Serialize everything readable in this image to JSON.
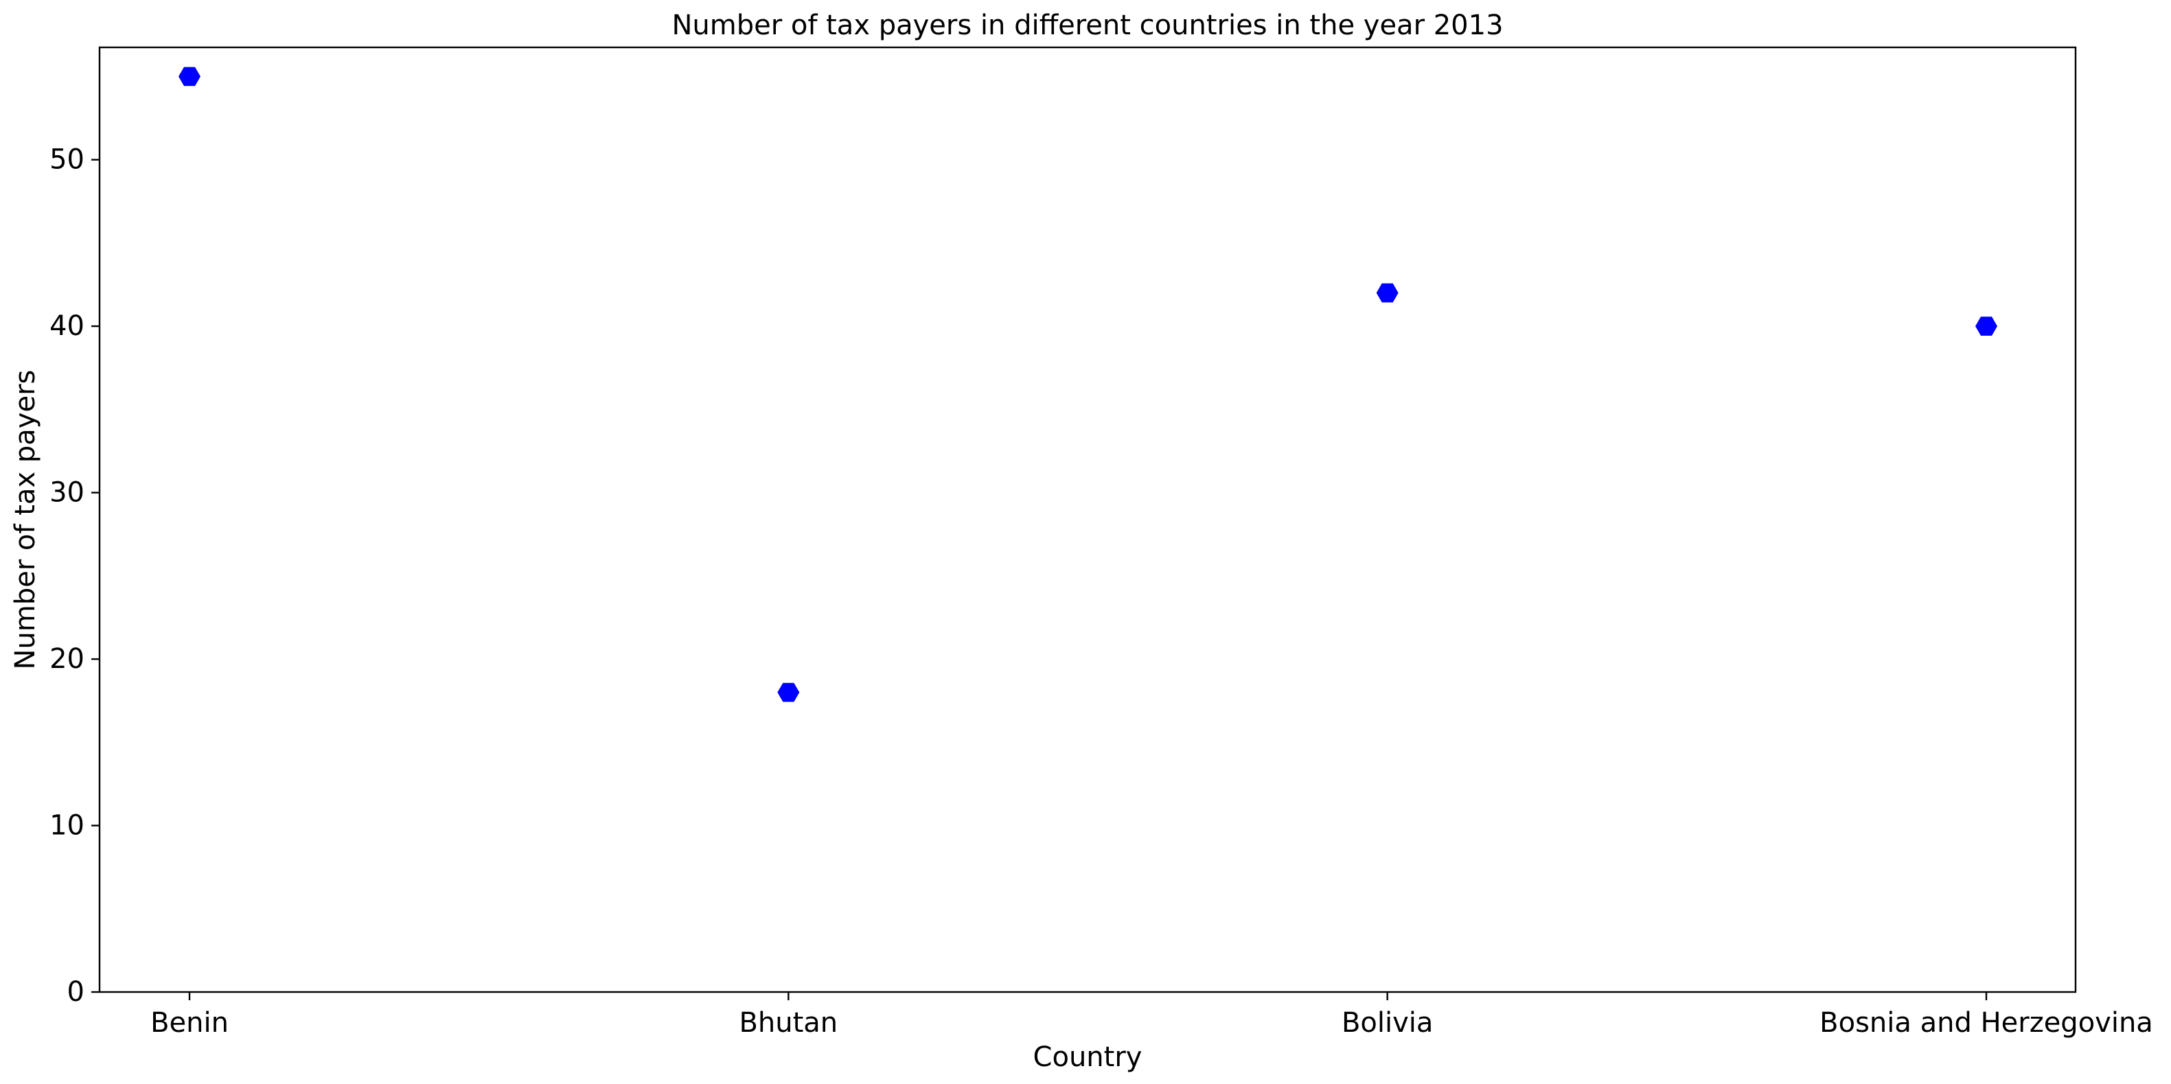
{
  "chart_data": {
    "type": "scatter",
    "title": "Number of tax payers in different countries in the year 2013",
    "xlabel": "Country",
    "ylabel": "Number of tax payers",
    "categories": [
      "Benin",
      "Bhutan",
      "Bolivia",
      "Bosnia and Herzegovina"
    ],
    "values": [
      55,
      18,
      42,
      40
    ],
    "ylim": [
      0,
      56.75
    ],
    "yticks": [
      0,
      10,
      20,
      30,
      40,
      50
    ],
    "marker": "hexagon",
    "color": "#0000ff",
    "grid": false,
    "legend": false
  }
}
